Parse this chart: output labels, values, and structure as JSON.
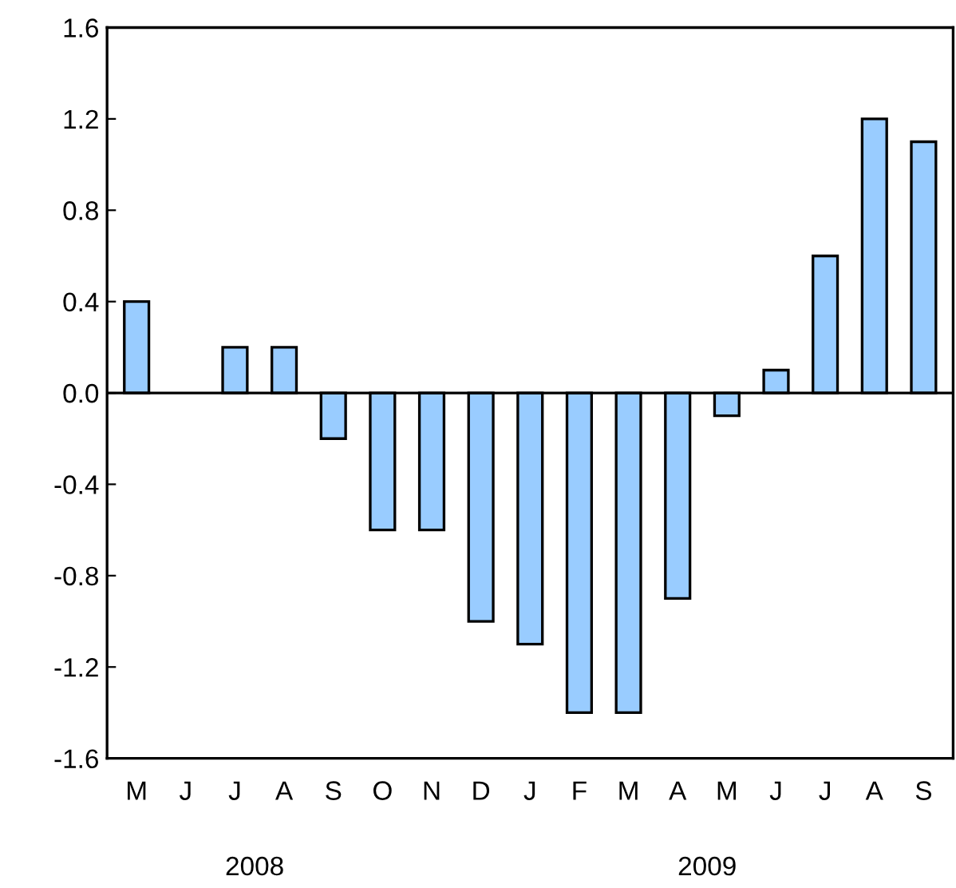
{
  "chart_data": {
    "type": "bar",
    "categories": [
      "M",
      "J",
      "J",
      "A",
      "S",
      "O",
      "N",
      "D",
      "J",
      "F",
      "M",
      "A",
      "M",
      "J",
      "J",
      "A",
      "S"
    ],
    "values": [
      0.4,
      null,
      0.2,
      0.2,
      -0.2,
      -0.6,
      -0.6,
      -1.0,
      -1.1,
      -1.4,
      -1.4,
      -0.9,
      -0.1,
      0.1,
      0.6,
      1.2,
      1.1
    ],
    "color": "#99ccff",
    "ylim": [
      -1.6,
      1.6
    ],
    "yticks": [
      {
        "value": -1.6,
        "label": "-1.6"
      },
      {
        "value": -1.2,
        "label": "-1.2"
      },
      {
        "value": -0.8,
        "label": "-0.8"
      },
      {
        "value": -0.4,
        "label": "-0.4"
      },
      {
        "value": 0,
        "label": "0.0"
      },
      {
        "value": 0.4,
        "label": "0.4"
      },
      {
        "value": 0.8,
        "label": "0.8"
      },
      {
        "value": 1.2,
        "label": "1.2"
      },
      {
        "value": 1.6,
        "label": "1.6"
      }
    ],
    "ref_lines": [
      {
        "axis": "y",
        "value": 0,
        "label": null
      }
    ],
    "annotations": [
      "2008",
      "2009"
    ],
    "grid": false,
    "legend": false
  }
}
